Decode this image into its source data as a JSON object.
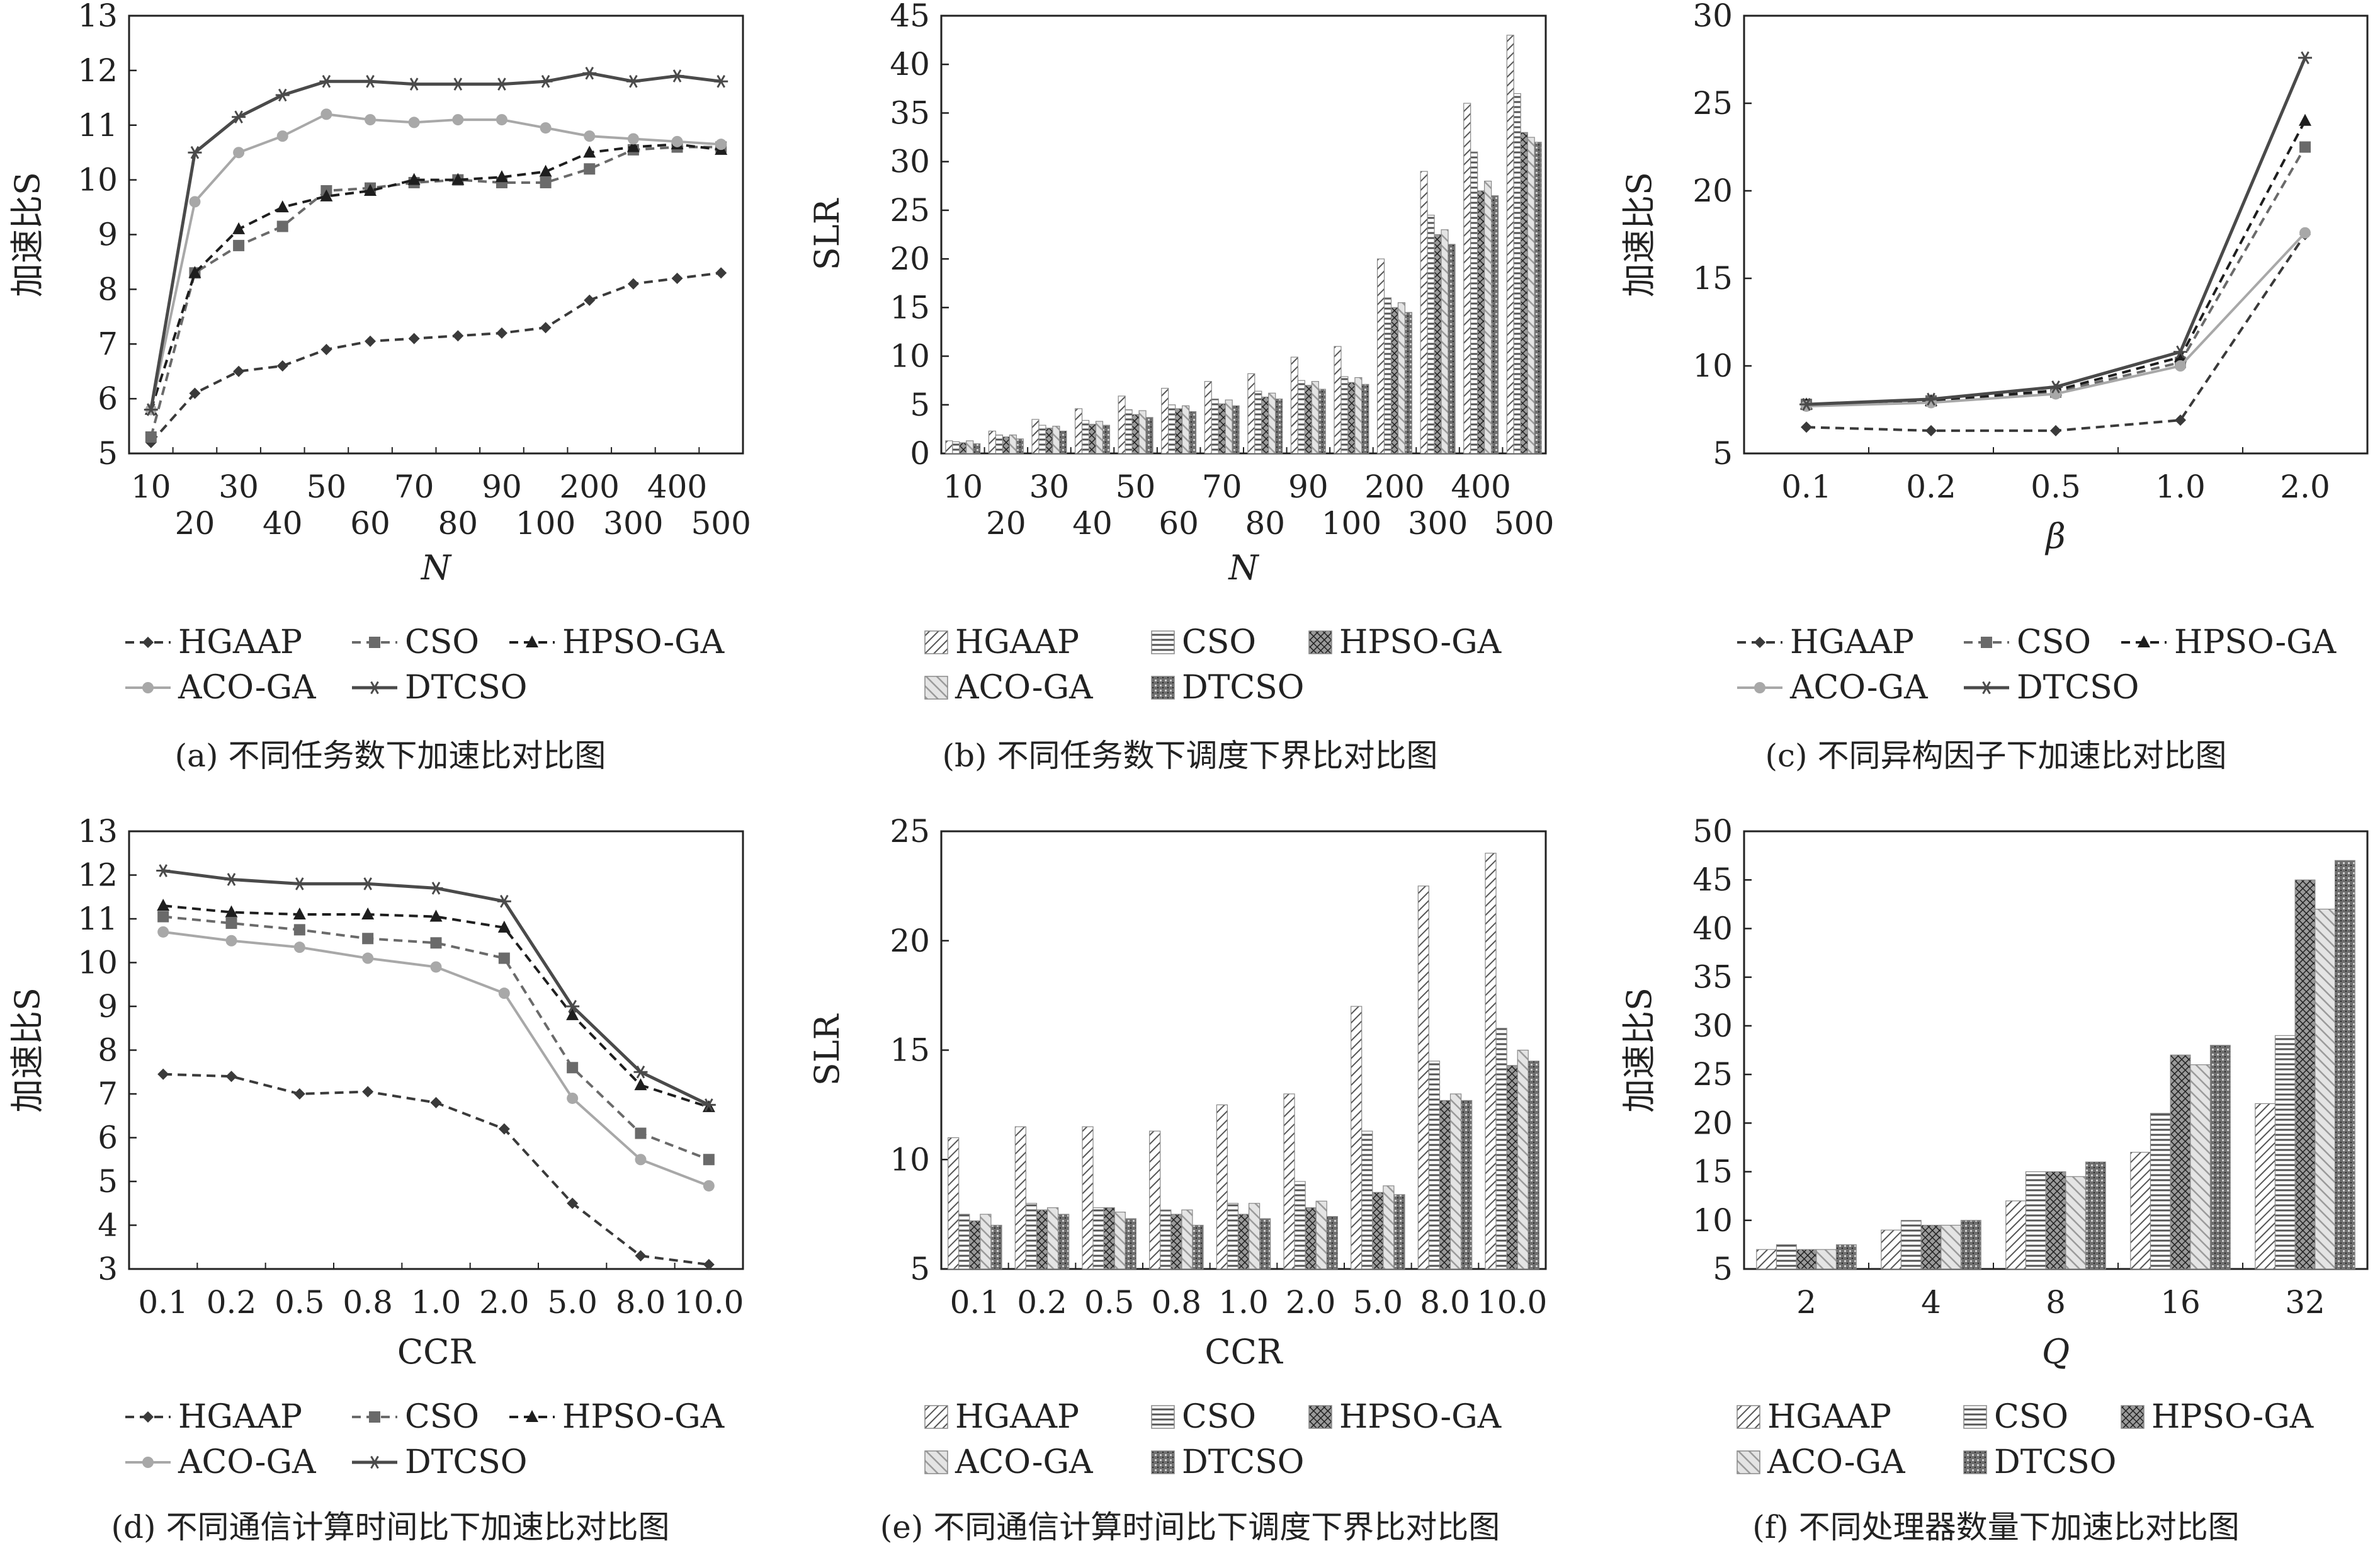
{
  "legend_names": [
    "HGAAP",
    "CSO",
    "HPSO-GA",
    "ACO-GA",
    "DTCSO"
  ],
  "colors": {
    "HGAAP": "#3a3a3a",
    "CSO": "#6a6a6a",
    "HPSO-GA": "#1e1e1e",
    "ACO-GA": "#a8a8a8",
    "DTCSO": "#4a4a4a"
  },
  "chart_data": [
    {
      "id": "a",
      "type": "line",
      "caption": "(a) 不同任务数下加速比对比图",
      "xlabel": "N",
      "ylabel": "加速比S",
      "x": [
        "10",
        "20",
        "30",
        "40",
        "50",
        "60",
        "70",
        "80",
        "90",
        "100",
        "200",
        "300",
        "400",
        "500"
      ],
      "ylim": [
        5,
        13
      ],
      "yticks": [
        5,
        6,
        7,
        8,
        9,
        10,
        11,
        12,
        13
      ],
      "series": [
        {
          "name": "HGAAP",
          "values": [
            5.2,
            6.1,
            6.5,
            6.6,
            6.9,
            7.05,
            7.1,
            7.15,
            7.2,
            7.3,
            7.8,
            8.1,
            8.2,
            8.3
          ]
        },
        {
          "name": "CSO",
          "values": [
            5.3,
            8.3,
            8.8,
            9.15,
            9.8,
            9.85,
            9.95,
            10.0,
            9.95,
            9.95,
            10.2,
            10.55,
            10.6,
            10.6
          ]
        },
        {
          "name": "HPSO-GA",
          "values": [
            5.8,
            8.3,
            9.1,
            9.5,
            9.7,
            9.8,
            10.0,
            10.0,
            10.05,
            10.15,
            10.5,
            10.6,
            10.65,
            10.55
          ]
        },
        {
          "name": "ACO-GA",
          "values": [
            5.8,
            9.6,
            10.5,
            10.8,
            11.2,
            11.1,
            11.05,
            11.1,
            11.1,
            10.95,
            10.8,
            10.75,
            10.7,
            10.65
          ]
        },
        {
          "name": "DTCSO",
          "values": [
            5.8,
            10.5,
            11.15,
            11.55,
            11.8,
            11.8,
            11.75,
            11.75,
            11.75,
            11.8,
            11.95,
            11.8,
            11.9,
            11.8
          ]
        }
      ]
    },
    {
      "id": "b",
      "type": "bar",
      "caption": "(b) 不同任务数下调度下界比对比图",
      "xlabel": "N",
      "ylabel": "SLR",
      "categories": [
        "10",
        "20",
        "30",
        "40",
        "50",
        "60",
        "70",
        "80",
        "90",
        "100",
        "200",
        "300",
        "400",
        "500"
      ],
      "ylim": [
        0,
        45
      ],
      "yticks": [
        0,
        5,
        10,
        15,
        20,
        25,
        30,
        35,
        40,
        45
      ],
      "series": [
        {
          "name": "HGAAP",
          "values": [
            1.3,
            2.3,
            3.5,
            4.6,
            5.9,
            6.7,
            7.4,
            8.2,
            9.9,
            11.0,
            20.0,
            29.0,
            36.0,
            43.0
          ]
        },
        {
          "name": "CSO",
          "values": [
            1.2,
            1.9,
            2.9,
            3.4,
            4.5,
            5.0,
            5.6,
            6.4,
            7.5,
            7.9,
            16.0,
            24.5,
            31.0,
            37.0
          ]
        },
        {
          "name": "HPSO-GA",
          "values": [
            1.1,
            1.7,
            2.6,
            3.0,
            4.0,
            4.6,
            5.1,
            5.8,
            7.0,
            7.3,
            15.0,
            22.5,
            27.0,
            33.0
          ]
        },
        {
          "name": "ACO-GA",
          "values": [
            1.3,
            1.9,
            2.8,
            3.3,
            4.4,
            4.9,
            5.5,
            6.2,
            7.4,
            7.8,
            15.5,
            23.0,
            28.0,
            32.5
          ]
        },
        {
          "name": "DTCSO",
          "values": [
            1.0,
            1.5,
            2.3,
            2.9,
            3.7,
            4.3,
            4.9,
            5.6,
            6.6,
            7.1,
            14.5,
            21.5,
            26.5,
            32.0
          ]
        }
      ]
    },
    {
      "id": "c",
      "type": "line",
      "caption": "(c) 不同异构因子下加速比对比图",
      "xlabel": "β",
      "ylabel": "加速比S",
      "x": [
        "0.1",
        "0.2",
        "0.5",
        "1.0",
        "2.0"
      ],
      "ylim": [
        5,
        30
      ],
      "yticks": [
        5,
        10,
        15,
        20,
        25,
        30
      ],
      "series": [
        {
          "name": "HGAAP",
          "values": [
            6.5,
            6.3,
            6.3,
            6.9,
            17.5
          ]
        },
        {
          "name": "CSO",
          "values": [
            7.8,
            8.0,
            8.5,
            10.2,
            22.5
          ]
        },
        {
          "name": "HPSO-GA",
          "values": [
            7.8,
            8.0,
            8.6,
            10.5,
            24.0
          ]
        },
        {
          "name": "ACO-GA",
          "values": [
            7.7,
            7.9,
            8.4,
            10.0,
            17.6
          ]
        },
        {
          "name": "DTCSO",
          "values": [
            7.8,
            8.1,
            8.8,
            10.8,
            27.6
          ]
        }
      ]
    },
    {
      "id": "d",
      "type": "line",
      "caption": "(d) 不同通信计算时间比下加速比对比图",
      "xlabel": "CCR",
      "ylabel": "加速比S",
      "x": [
        "0.1",
        "0.2",
        "0.5",
        "0.8",
        "1.0",
        "2.0",
        "5.0",
        "8.0",
        "10.0"
      ],
      "ylim": [
        3,
        13
      ],
      "yticks": [
        3,
        4,
        5,
        6,
        7,
        8,
        9,
        10,
        11,
        12,
        13
      ],
      "series": [
        {
          "name": "HGAAP",
          "values": [
            7.45,
            7.4,
            7.0,
            7.05,
            6.8,
            6.2,
            4.5,
            3.3,
            3.1
          ]
        },
        {
          "name": "CSO",
          "values": [
            11.05,
            10.9,
            10.75,
            10.55,
            10.45,
            10.1,
            7.6,
            6.1,
            5.5
          ]
        },
        {
          "name": "HPSO-GA",
          "values": [
            11.3,
            11.15,
            11.1,
            11.1,
            11.05,
            10.8,
            8.8,
            7.2,
            6.7
          ]
        },
        {
          "name": "ACO-GA",
          "values": [
            10.7,
            10.5,
            10.35,
            10.1,
            9.9,
            9.3,
            6.9,
            5.5,
            4.9
          ]
        },
        {
          "name": "DTCSO",
          "values": [
            12.1,
            11.9,
            11.8,
            11.8,
            11.7,
            11.4,
            9.0,
            7.5,
            6.75
          ]
        }
      ]
    },
    {
      "id": "e",
      "type": "bar",
      "caption": "(e) 不同通信计算时间比下调度下界比对比图",
      "xlabel": "CCR",
      "ylabel": "SLR",
      "categories": [
        "0.1",
        "0.2",
        "0.5",
        "0.8",
        "1.0",
        "2.0",
        "5.0",
        "8.0",
        "10.0"
      ],
      "ylim": [
        5,
        25
      ],
      "yticks": [
        5,
        10,
        15,
        20,
        25
      ],
      "series": [
        {
          "name": "HGAAP",
          "values": [
            11.0,
            11.5,
            11.5,
            11.3,
            12.5,
            13.0,
            17.0,
            22.5,
            24.0
          ]
        },
        {
          "name": "CSO",
          "values": [
            7.5,
            8.0,
            7.8,
            7.7,
            8.0,
            9.0,
            11.3,
            14.5,
            16.0
          ]
        },
        {
          "name": "HPSO-GA",
          "values": [
            7.2,
            7.7,
            7.8,
            7.5,
            7.5,
            7.8,
            8.5,
            12.7,
            14.3
          ]
        },
        {
          "name": "ACO-GA",
          "values": [
            7.5,
            7.8,
            7.6,
            7.7,
            8.0,
            8.1,
            8.8,
            13.0,
            15.0
          ]
        },
        {
          "name": "DTCSO",
          "values": [
            7.0,
            7.5,
            7.3,
            7.0,
            7.3,
            7.4,
            8.4,
            12.7,
            14.5
          ]
        }
      ]
    },
    {
      "id": "f",
      "type": "bar",
      "caption": "(f) 不同处理器数量下加速比对比图",
      "xlabel": "Q",
      "ylabel": "加速比S",
      "categories": [
        "2",
        "4",
        "8",
        "16",
        "32"
      ],
      "ylim": [
        5,
        50
      ],
      "yticks": [
        5,
        10,
        15,
        20,
        25,
        30,
        35,
        40,
        45,
        50
      ],
      "series": [
        {
          "name": "HGAAP",
          "values": [
            7.0,
            9.0,
            12.0,
            17.0,
            22.0
          ]
        },
        {
          "name": "CSO",
          "values": [
            7.5,
            10.0,
            15.0,
            21.0,
            29.0
          ]
        },
        {
          "name": "HPSO-GA",
          "values": [
            7.0,
            9.5,
            15.0,
            27.0,
            45.0
          ]
        },
        {
          "name": "ACO-GA",
          "values": [
            7.0,
            9.5,
            14.5,
            26.0,
            42.0
          ]
        },
        {
          "name": "DTCSO",
          "values": [
            7.5,
            10.0,
            16.0,
            28.0,
            47.0
          ]
        }
      ]
    }
  ]
}
